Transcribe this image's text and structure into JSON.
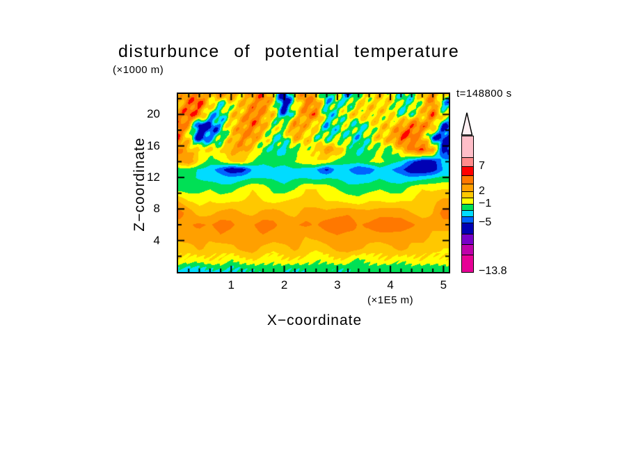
{
  "header": {
    "title": "disturbunce of potential temperature",
    "z_unit": "(×1000 m)",
    "time_label": "t=148800 s"
  },
  "axes": {
    "x": {
      "title": "X−coordinate",
      "unit": "(×1E5 m)",
      "range": [
        0,
        5.1
      ],
      "minor_step": 0.2,
      "ticks": [
        {
          "label": "1",
          "value": 1
        },
        {
          "label": "2",
          "value": 2
        },
        {
          "label": "3",
          "value": 3
        },
        {
          "label": "4",
          "value": 4
        },
        {
          "label": "5",
          "value": 5
        }
      ]
    },
    "z": {
      "title": "Z−coordinate",
      "range": [
        0,
        22.6
      ],
      "minor_step": 2,
      "ticks": [
        {
          "label": "20",
          "value": 20
        },
        {
          "label": "16",
          "value": 16
        },
        {
          "label": "12",
          "value": 12
        },
        {
          "label": "8",
          "value": 8
        },
        {
          "label": "4",
          "value": 4
        }
      ]
    }
  },
  "colorbar": {
    "arrow_color": "#FFF0F3",
    "segments": [
      {
        "color": "#FFBEC8",
        "h": 31
      },
      {
        "color": "#FF8C8C",
        "h": 13
      },
      {
        "color": "#FF0000",
        "h": 13
      },
      {
        "color": "#FF7800",
        "h": 12
      },
      {
        "color": "#FFA000",
        "h": 11
      },
      {
        "color": "#FFC800",
        "h": 9
      },
      {
        "color": "#FFFF00",
        "h": 9
      },
      {
        "color": "#00E055",
        "h": 9
      },
      {
        "color": "#00DCFF",
        "h": 9
      },
      {
        "color": "#0064FF",
        "h": 9
      },
      {
        "color": "#0000B4",
        "h": 16
      },
      {
        "color": "#7800C8",
        "h": 15
      },
      {
        "color": "#BE00AA",
        "h": 15
      },
      {
        "color": "#E60096",
        "h": 24
      }
    ],
    "labels": [
      {
        "text": "7",
        "off": 44
      },
      {
        "text": "2",
        "off": 80
      },
      {
        "text": "−1",
        "off": 98
      },
      {
        "text": "−5",
        "off": 125
      },
      {
        "text": "−13.8",
        "off": 195
      }
    ]
  },
  "chart_data": {
    "type": "heatmap",
    "title": "disturbunce of potential temperature",
    "xlabel": "X-coordinate (x1E5 m)",
    "zlabel": "Z-coordinate (x1000 m)",
    "time": "t=148800 s",
    "xlim": [
      0,
      5.1
    ],
    "zlim": [
      0,
      22.6
    ],
    "level_bounds": [
      8.67,
      7,
      5.33,
      3.67,
      2,
      0.5,
      -1,
      -2.33,
      -3.67,
      -5,
      -7.2,
      -9.4,
      -11.6
    ],
    "level_colors": [
      "#FFBEC8",
      "#FF8C8C",
      "#FF0000",
      "#FF7800",
      "#FFA000",
      "#FFC800",
      "#FFFF00",
      "#00E055",
      "#00DCFF",
      "#0064FF",
      "#0000B4",
      "#7800C8",
      "#BE00AA",
      "#E60096"
    ],
    "labeled_levels": [
      7,
      2,
      -1,
      -5,
      -13.8
    ],
    "x": [
      0,
      0.2,
      0.4,
      0.6,
      0.8,
      1,
      1.2,
      1.4,
      1.6,
      1.8,
      2,
      2.2,
      2.4,
      2.6,
      2.8,
      3,
      3.2,
      3.4,
      3.6,
      3.8,
      4,
      4.2,
      4.4,
      4.6,
      4.8,
      5
    ],
    "z_rows": [
      23,
      21.5,
      20,
      18.5,
      17,
      15.5,
      14,
      13,
      12,
      10.5,
      9,
      7.5,
      6,
      4.5,
      3,
      1.5,
      0.6,
      0
    ],
    "values": [
      [
        1,
        2.5,
        3.5,
        2,
        5.5,
        4,
        1,
        3.5,
        4.5,
        0,
        -6.5,
        1,
        4,
        1,
        -3,
        0,
        -6,
        -1,
        0,
        1,
        0,
        -2,
        -2,
        1,
        4,
        2
      ],
      [
        2,
        4.5,
        5.5,
        1,
        -1.8,
        0,
        1,
        3,
        4.5,
        0.5,
        -7,
        -1,
        4,
        3,
        -3,
        -1.5,
        -1.8,
        0,
        0.5,
        1,
        0.5,
        -1.8,
        -1.8,
        0.5,
        4,
        -4
      ],
      [
        3,
        5.5,
        4,
        -2,
        -3,
        0.5,
        2,
        4.5,
        3,
        0.5,
        -5,
        0,
        3.5,
        4,
        -2.5,
        -1.8,
        0,
        1,
        1,
        0.5,
        0,
        -1.8,
        -1,
        1,
        4.5,
        0
      ],
      [
        5.5,
        2,
        -7,
        -6,
        -3,
        1,
        3,
        4.5,
        2,
        -1,
        0,
        3.5,
        2,
        0.5,
        -3,
        -1.8,
        -1,
        -2.5,
        -1,
        0.8,
        1,
        3,
        5,
        4,
        2,
        -5
      ],
      [
        4.5,
        0,
        -6.5,
        -3.5,
        -2,
        1,
        3.5,
        3,
        0.5,
        -1.8,
        -1.8,
        2,
        1,
        -1,
        -1.8,
        -1.8,
        -1.5,
        -2.5,
        -1,
        1,
        2,
        5.5,
        4.5,
        2,
        -4.5,
        -5.5
      ],
      [
        4,
        2,
        1,
        0.5,
        0,
        2.5,
        3,
        0.5,
        -1.8,
        -2,
        -3,
        -1.8,
        -0.5,
        0.5,
        3,
        2,
        -1,
        -2.5,
        -1.8,
        -1,
        -1.5,
        1,
        4,
        5.5,
        3,
        -6
      ],
      [
        2,
        3.5,
        0,
        -1.8,
        -1,
        0.5,
        1,
        -1,
        -2,
        -1.8,
        -1.8,
        -1,
        0,
        0.5,
        0,
        -1.8,
        -1.8,
        -1.8,
        -1,
        -0.5,
        -1.8,
        -2.5,
        -4.5,
        -6.5,
        -6,
        -3
      ],
      [
        -1.8,
        -1.8,
        -2.5,
        -3,
        -4.5,
        -6.5,
        -6,
        -3.5,
        -3,
        -2.5,
        -3,
        -2.5,
        -3,
        -3.5,
        -5.5,
        -3,
        -3.5,
        -5,
        -4.5,
        -3,
        -3.5,
        -4.5,
        -6.5,
        -7,
        -6,
        -3.5
      ],
      [
        -1.5,
        -2,
        -2.5,
        -3,
        -3,
        -3.5,
        -3,
        -2.5,
        -2.5,
        -2.5,
        -3,
        -2.5,
        -2.5,
        -3,
        -2.5,
        -2.5,
        -3,
        -3,
        -3,
        -2.5,
        -3,
        -3,
        -3.5,
        -3,
        -2.5,
        -2
      ],
      [
        -1.5,
        -1.8,
        -1.5,
        -1,
        -1.8,
        -1.5,
        -0.5,
        0.5,
        0,
        -1.5,
        -1.8,
        -1,
        0.5,
        0.5,
        0,
        -1,
        -1.8,
        -1.8,
        -1.5,
        -1,
        -1.5,
        -1.8,
        0,
        0.5,
        0.3,
        0.5
      ],
      [
        2,
        0.5,
        0,
        0.5,
        0,
        0.3,
        0.5,
        1,
        0.5,
        0,
        0.5,
        1,
        1,
        0.8,
        0.5,
        0.5,
        0,
        -0.5,
        0.5,
        0.5,
        0,
        0.5,
        0.5,
        1,
        1.5,
        2.5
      ],
      [
        4.5,
        3,
        1.2,
        1.5,
        2.5,
        3,
        2,
        1.5,
        2.5,
        3,
        2,
        1.2,
        3,
        3,
        2.5,
        3,
        3.5,
        3,
        2.5,
        3,
        3.5,
        3,
        2,
        1.2,
        2,
        4.5
      ],
      [
        3,
        3.5,
        4,
        3.5,
        4.5,
        4,
        3,
        3.5,
        4.5,
        4,
        3,
        3.5,
        4,
        3.5,
        4.5,
        5,
        4.6,
        3.5,
        4,
        4.8,
        4,
        4.6,
        4,
        3,
        2.5,
        3
      ],
      [
        2.5,
        3.5,
        3,
        2.5,
        3.5,
        3,
        2,
        3,
        3.5,
        3,
        3.5,
        3,
        2,
        2.5,
        3,
        3.5,
        3,
        3.5,
        3,
        3,
        3.5,
        3,
        2.5,
        3,
        1.5,
        1.2
      ],
      [
        1.2,
        0.8,
        2.5,
        1.2,
        0.8,
        1.5,
        2.5,
        3,
        1.5,
        0.8,
        1.2,
        2.5,
        1.2,
        0.8,
        1.5,
        2.5,
        3,
        2.5,
        1.2,
        0.8,
        1.5,
        2.8,
        1.5,
        1.2,
        0.8,
        0.5
      ],
      [
        0.5,
        0,
        -0.5,
        0.5,
        0.3,
        -1,
        0,
        0.5,
        0,
        -0.5,
        0.5,
        0.3,
        0,
        -1,
        -0.5,
        0.5,
        0,
        -1.5,
        -0.5,
        0.3,
        0.5,
        -1,
        0,
        0.5,
        0,
        0.3
      ],
      [
        -2,
        -2.5,
        -2.5,
        -2,
        -1.8,
        -2.5,
        -2,
        -1.8,
        -1.8,
        -1.5,
        -1.8,
        -2,
        -1.8,
        -1.5,
        -1.8,
        -2,
        -1.8,
        -1.8,
        -1.5,
        -1.8,
        -2,
        -1.8,
        -1.5,
        -1.8,
        -1.8,
        -1.5
      ],
      [
        -3,
        -3,
        -2.8,
        -2.8,
        -2.6,
        -2.5,
        -2.5,
        -2.4,
        -2,
        -1.8,
        -2.4,
        -2.5,
        -2.4,
        -1.8,
        -1.8,
        -2.4,
        -2.5,
        -1.8,
        -1.8,
        -1.8,
        -2,
        -1.8,
        -1.8,
        -2,
        -1.8,
        -1.8
      ]
    ]
  }
}
